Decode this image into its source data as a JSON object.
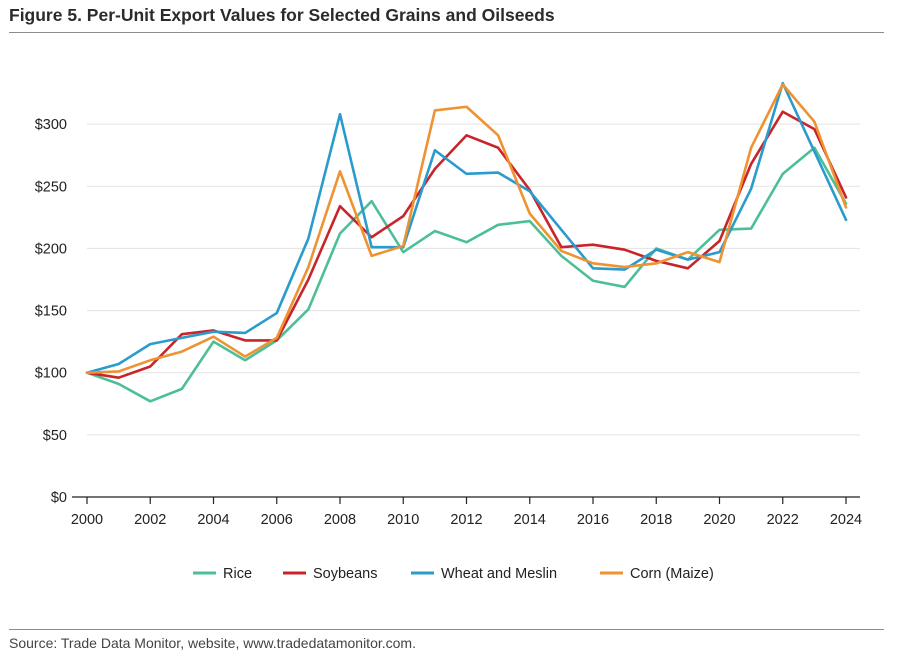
{
  "header": {
    "title": "Figure 5. Per-Unit Export Values for Selected Grains and Oilseeds"
  },
  "footer": {
    "source": "Source: Trade Data Monitor, website, www.tradedatamonitor.com."
  },
  "chart_data": {
    "type": "line",
    "title": "Figure 5. Per-Unit Export Values for Selected Grains and Oilseeds",
    "xlabel": "",
    "ylabel": "",
    "x": [
      2000,
      2001,
      2002,
      2003,
      2004,
      2005,
      2006,
      2007,
      2008,
      2009,
      2010,
      2011,
      2012,
      2013,
      2014,
      2015,
      2016,
      2017,
      2018,
      2019,
      2020,
      2021,
      2022,
      2023,
      2024
    ],
    "xlim": [
      2000,
      2024
    ],
    "ylim": [
      0,
      350
    ],
    "x_ticks": [
      2000,
      2002,
      2004,
      2006,
      2008,
      2010,
      2012,
      2014,
      2016,
      2018,
      2020,
      2022,
      2024
    ],
    "x_tick_labels": [
      "2000",
      "2002",
      "2004",
      "2006",
      "2008",
      "2010",
      "2012",
      "2014",
      "2016",
      "2018",
      "2020",
      "2022",
      "2024"
    ],
    "y_ticks": [
      0,
      50,
      100,
      150,
      200,
      250,
      300
    ],
    "y_tick_labels": [
      "$0",
      "$50",
      "$100",
      "$150",
      "$200",
      "$250",
      "$300"
    ],
    "grid": true,
    "legend_position": "bottom",
    "series": [
      {
        "name": "Rice",
        "color": "#4dbf96",
        "values": [
          100,
          91,
          77,
          87,
          125,
          110,
          126,
          151,
          212,
          238,
          197,
          214,
          205,
          219,
          222,
          194,
          174,
          169,
          200,
          191,
          215,
          216,
          260,
          281,
          236
        ]
      },
      {
        "name": "Soybeans",
        "color": "#c8252b",
        "values": [
          100,
          96,
          105,
          131,
          134,
          126,
          126,
          175,
          234,
          209,
          226,
          264,
          291,
          281,
          247,
          201,
          203,
          199,
          190,
          184,
          206,
          268,
          310,
          296,
          241
        ]
      },
      {
        "name": "Wheat and Meslin",
        "color": "#2a9bcc",
        "values": [
          100,
          107,
          123,
          128,
          133,
          132,
          148,
          208,
          308,
          201,
          201,
          279,
          260,
          261,
          246,
          215,
          184,
          183,
          199,
          191,
          197,
          248,
          333,
          278,
          223
        ]
      },
      {
        "name": "Corn (Maize)",
        "color": "#ee9232",
        "values": [
          100,
          101,
          110,
          117,
          129,
          113,
          128,
          185,
          262,
          194,
          202,
          311,
          314,
          291,
          228,
          198,
          188,
          185,
          188,
          197,
          189,
          281,
          332,
          302,
          233
        ]
      }
    ]
  }
}
